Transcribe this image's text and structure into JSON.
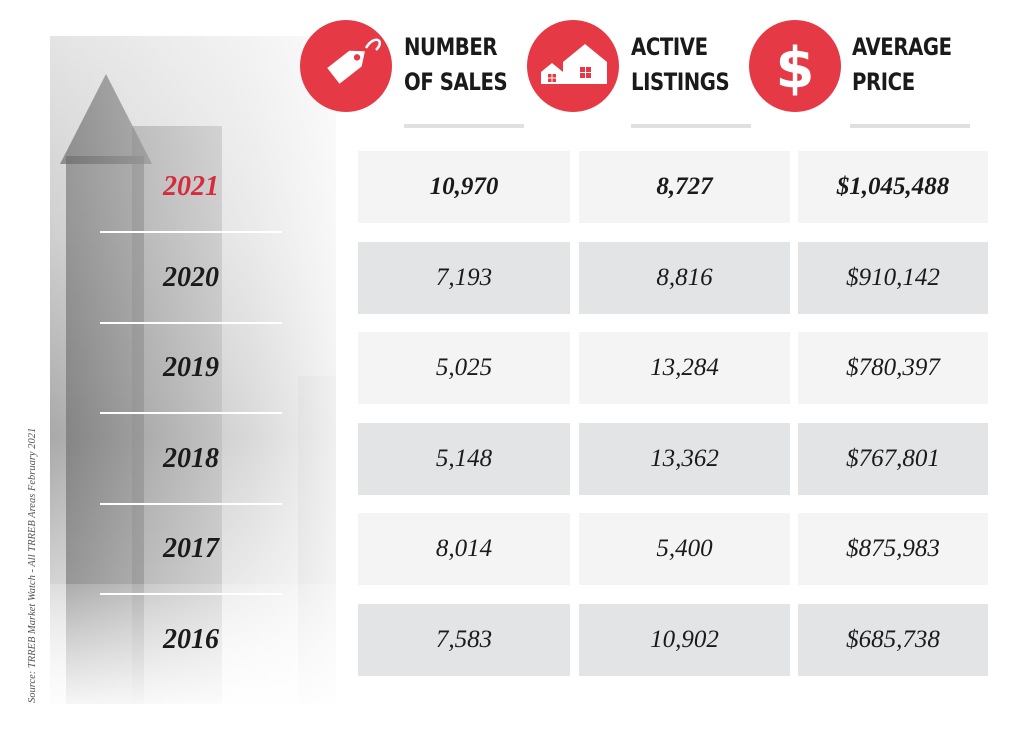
{
  "headers": {
    "sales": {
      "line1": "NUMBER",
      "line2": "OF SALES",
      "icon": "price-tag-icon"
    },
    "listings": {
      "line1": "ACTIVE",
      "line2": "LISTINGS",
      "icon": "houses-icon"
    },
    "price": {
      "line1": "AVERAGE",
      "line2": "PRICE",
      "icon": "dollar-sign-icon"
    }
  },
  "colors": {
    "accent": "#e63946",
    "highlight_year": "#d62b3a"
  },
  "source": "Source: TRREB Market Watch - All TRREB Areas February 2021",
  "chart_data": {
    "type": "table",
    "columns": [
      "",
      "NUMBER OF SALES",
      "ACTIVE LISTINGS",
      "AVERAGE PRICE"
    ],
    "rows": [
      {
        "year": "2021",
        "sales": "10,970",
        "listings": "8,727",
        "price": "$1,045,488"
      },
      {
        "year": "2020",
        "sales": "7,193",
        "listings": "8,816",
        "price": "$910,142"
      },
      {
        "year": "2019",
        "sales": "5,025",
        "listings": "13,284",
        "price": "$780,397"
      },
      {
        "year": "2018",
        "sales": "5,148",
        "listings": "13,362",
        "price": "$767,801"
      },
      {
        "year": "2017",
        "sales": "8,014",
        "listings": "5,400",
        "price": "$875,983"
      },
      {
        "year": "2016",
        "sales": "7,583",
        "listings": "10,902",
        "price": "$685,738"
      }
    ]
  }
}
